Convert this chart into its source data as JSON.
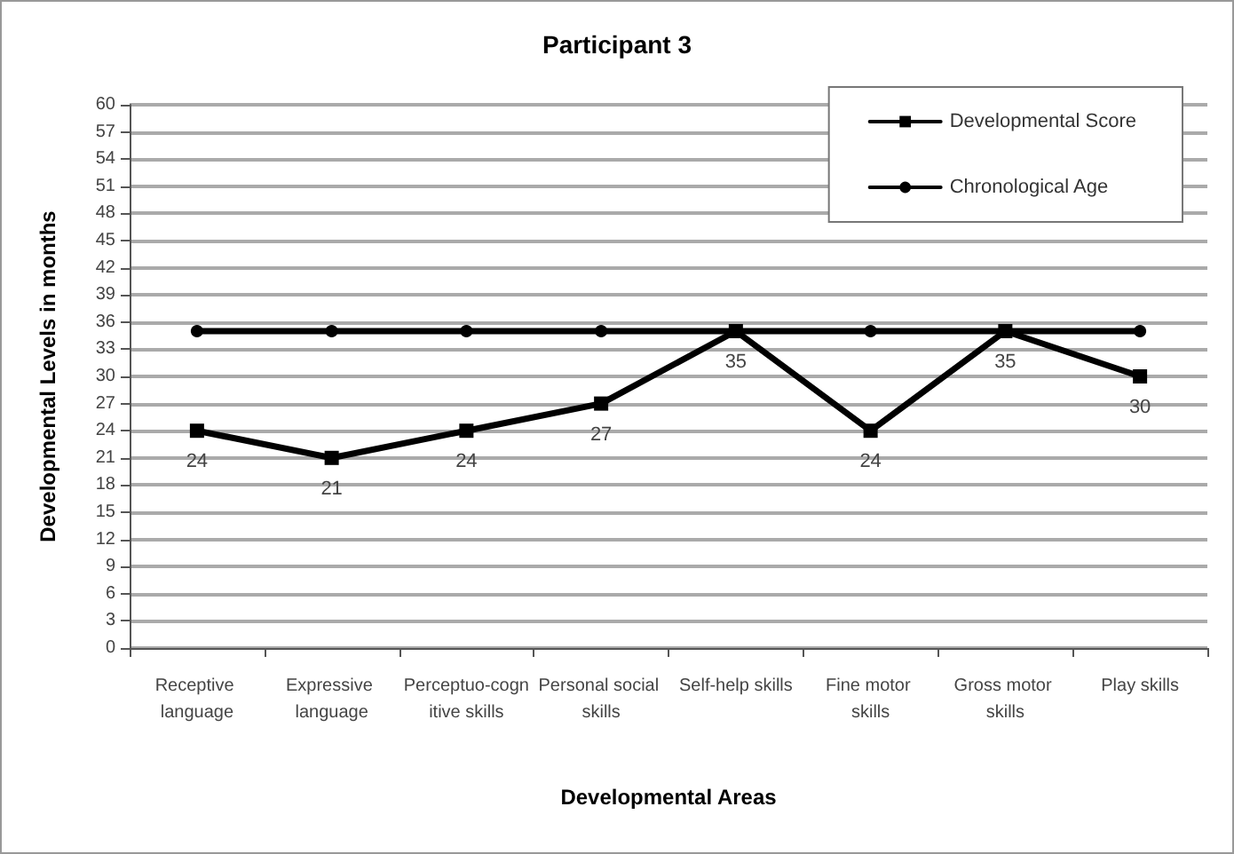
{
  "chart_data": {
    "type": "line",
    "title": "Participant 3",
    "xlabel": "Developmental Areas",
    "ylabel": "Developmental Levels in months",
    "categories": [
      "Receptive language",
      "Expressive language",
      "Perceptuo-cognitive skills",
      "Personal social skills",
      "Self-help skills",
      "Fine motor skills",
      "Gross motor skills",
      "Play skills"
    ],
    "series": [
      {
        "name": "Developmental Score",
        "color": "#000000",
        "marker": "square",
        "values": [
          24,
          21,
          24,
          27,
          35,
          24,
          35,
          30
        ],
        "value_labels": [
          "24",
          "21",
          "24",
          "27",
          "35",
          "24",
          "35",
          "30"
        ]
      },
      {
        "name": "Chronological Age",
        "color": "#000000",
        "marker": "circle",
        "values": [
          35,
          35,
          35,
          35,
          35,
          35,
          35,
          35
        ]
      }
    ],
    "ylim": [
      0,
      60
    ],
    "yticks": [
      0,
      3,
      6,
      9,
      12,
      15,
      18,
      21,
      24,
      27,
      30,
      33,
      36,
      39,
      42,
      45,
      48,
      51,
      54,
      57,
      60
    ],
    "grid": "y",
    "legend": "top right",
    "line_style": "solid"
  }
}
